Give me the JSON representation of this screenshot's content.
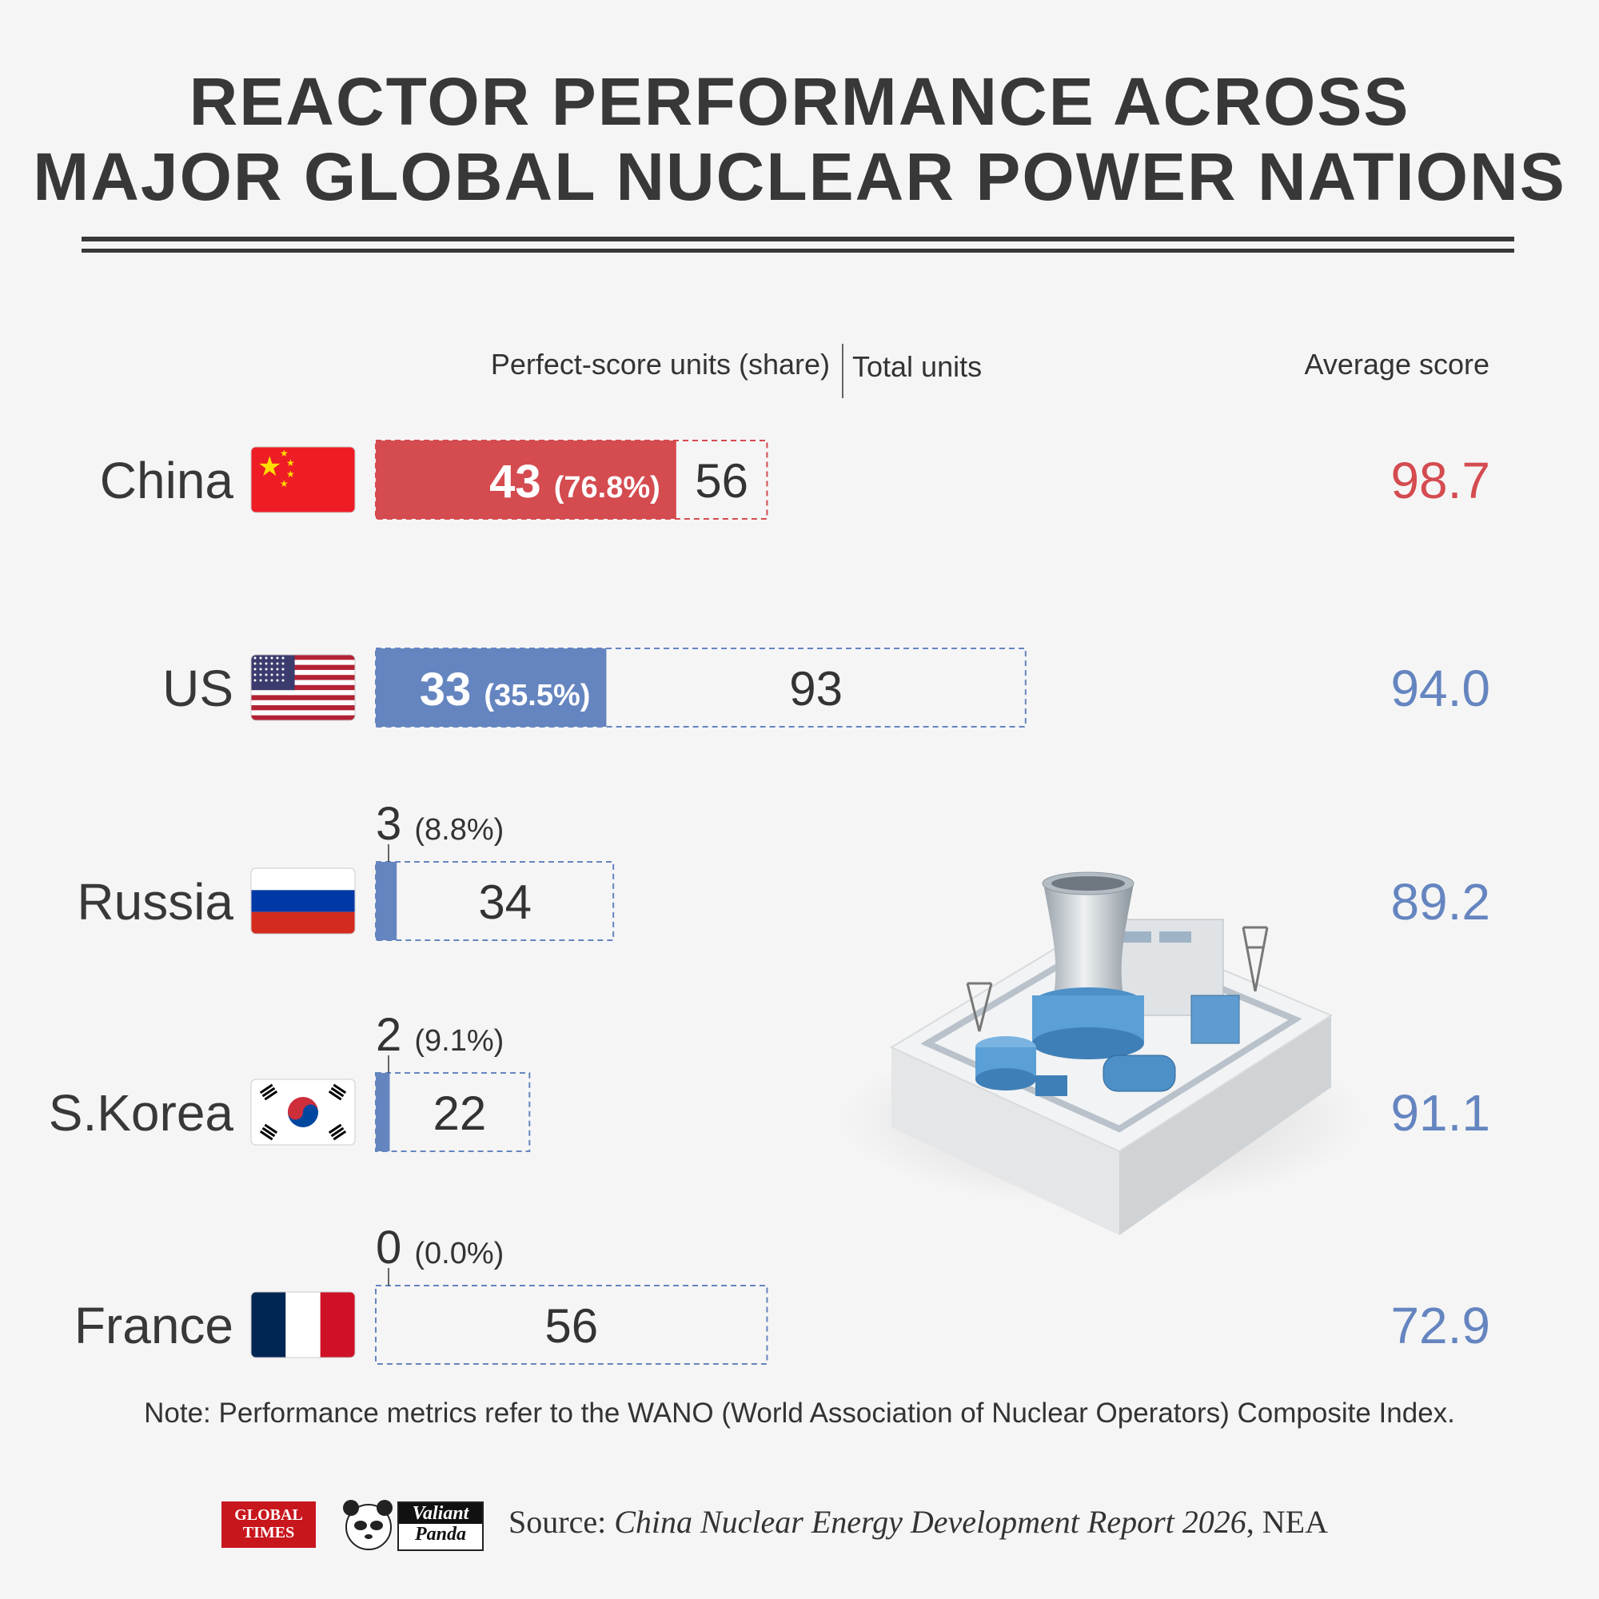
{
  "title_lines": [
    "REACTOR PERFORMANCE ACROSS",
    "MAJOR GLOBAL NUCLEAR POWER NATIONS"
  ],
  "headers": {
    "perfect": "Perfect-score units (share)",
    "total": "Total units",
    "average": "Average score"
  },
  "colors": {
    "red": "#d44b50",
    "blue": "#6585c0",
    "text_dark": "#383838"
  },
  "chart_data": {
    "type": "bar",
    "categories": [
      "China",
      "US",
      "Russia",
      "S.Korea",
      "France"
    ],
    "series": [
      {
        "name": "Perfect-score units (share)",
        "values": [
          43,
          33,
          3,
          2,
          0
        ],
        "labels": [
          "(76.8%)",
          "(35.5%)",
          "(8.8%)",
          "(9.1%)",
          "(0.0%)"
        ]
      },
      {
        "name": "Total units",
        "values": [
          56,
          93,
          34,
          22,
          56
        ]
      },
      {
        "name": "Average score",
        "values": [
          98.7,
          94.0,
          89.2,
          91.1,
          72.9
        ],
        "labels": [
          "98.7",
          "94.0",
          "89.2",
          "91.1",
          "72.9"
        ]
      }
    ],
    "flags": [
      "china-flag",
      "us-flag",
      "russia-flag",
      "south-korea-flag",
      "france-flag"
    ],
    "bar_colors": [
      "#d44b50",
      "#6585c0",
      "#6585c0",
      "#6585c0",
      "#6585c0"
    ]
  },
  "note": "Note: Performance metrics refer to the WANO (World Association of Nuclear Operators) Composite Index.",
  "logos": {
    "global_times": "GLOBAL TIMES",
    "valiant": "Valiant",
    "panda": "Panda"
  },
  "source": {
    "prefix": "Source: ",
    "report": "China Nuclear Energy Development Report 2026",
    "suffix": ", NEA"
  }
}
